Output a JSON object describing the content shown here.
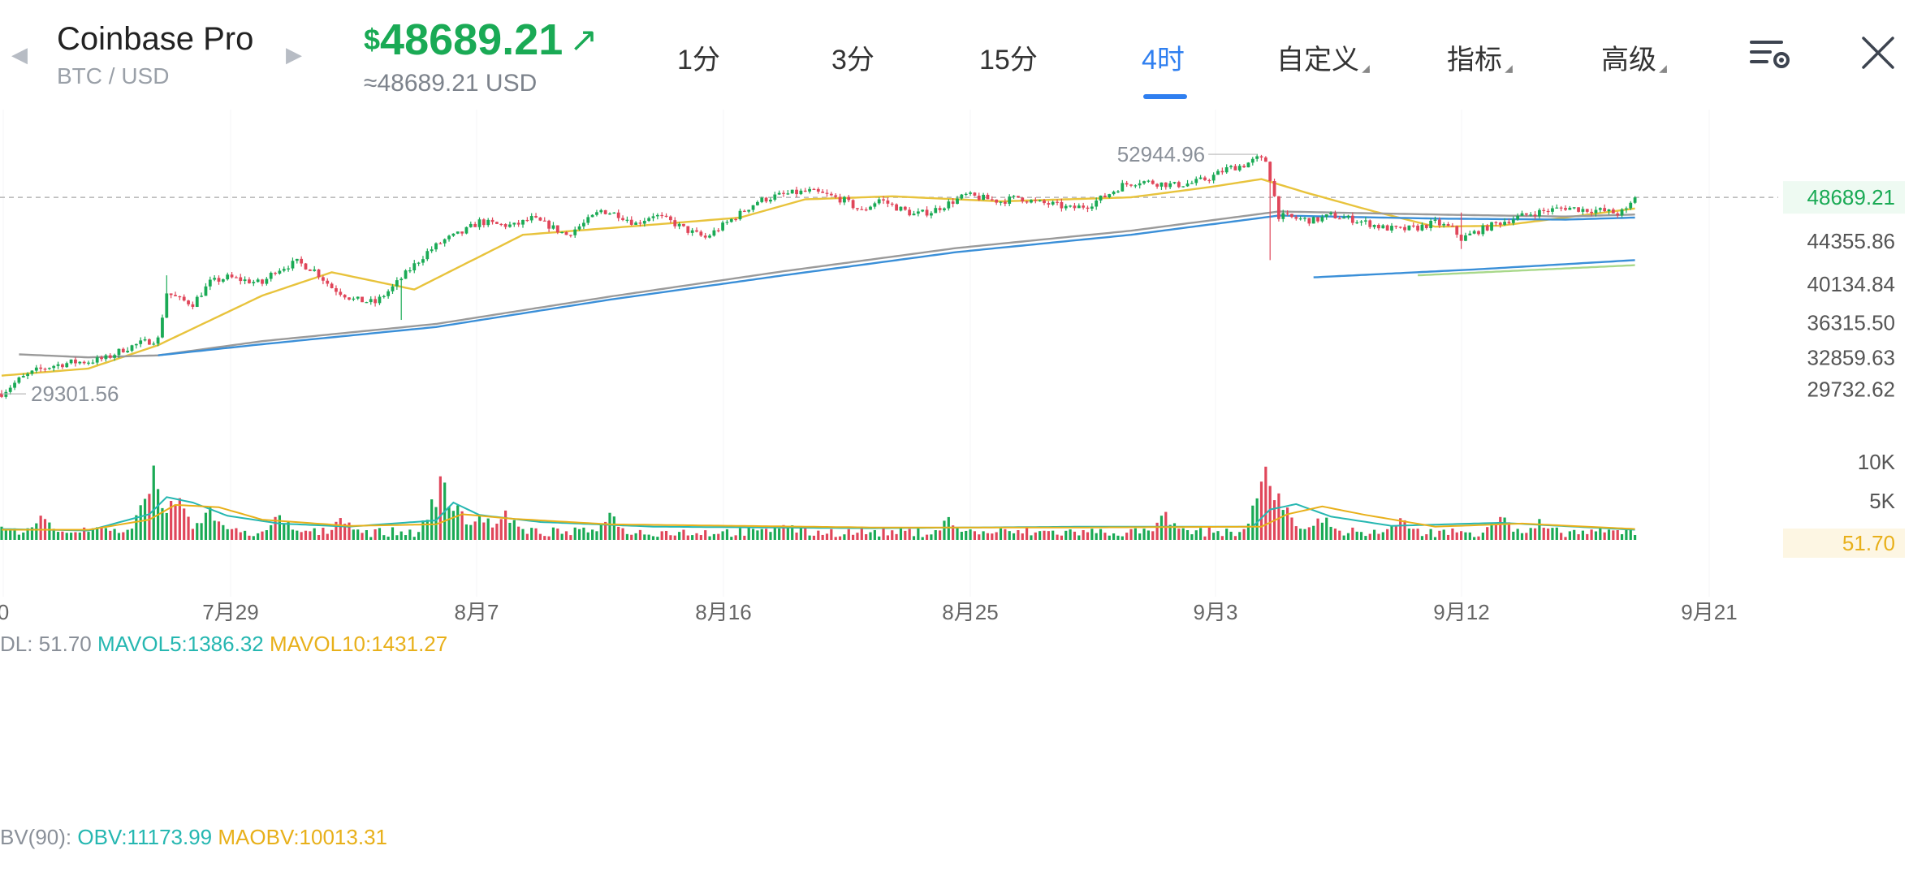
{
  "header": {
    "exchange": "Coinbase Pro",
    "pair": "BTC / USD",
    "price_currency": "$",
    "price": "48689.21",
    "price_fiat": "≈48689.21 USD",
    "trend_arrow": "↗",
    "price_color": "#1aaa55"
  },
  "tabs": [
    {
      "label": "1分",
      "active": false
    },
    {
      "label": "3分",
      "active": false
    },
    {
      "label": "15分",
      "active": false
    },
    {
      "label": "4时",
      "active": true
    },
    {
      "label": "自定义",
      "active": false,
      "dropdown": true
    },
    {
      "label": "指标",
      "active": false,
      "dropdown": true
    },
    {
      "label": "高级",
      "active": false,
      "dropdown": true
    }
  ],
  "icons": {
    "prev": "chevron-left-icon",
    "next": "chevron-right-icon",
    "settings": "list-settings-icon",
    "close": "close-icon"
  },
  "colors": {
    "accent": "#2f7ff0",
    "up": "#1aaa55",
    "down": "#e0465a",
    "ma_gold": "#e8c33c",
    "ma_grey": "#9a9a9a",
    "ma_blue": "#3a8fd8",
    "vol_ma5": "#26b7b1",
    "vol_ma10": "#e8b01a"
  },
  "indicators": {
    "vol_prefix": "DL: 51.70",
    "mavol5": "MAVOL5:1386.32",
    "mavol10": "MAVOL10:1431.27",
    "obv_prefix": "BV(90):",
    "obv": "OBV:11173.99",
    "maobv": "MAOBV:10013.31"
  },
  "chart_data": {
    "type": "candlestick",
    "symbol": "BTC / USD",
    "interval": "4时",
    "x_tick_labels": [
      "0",
      "7月29",
      "8月7",
      "8月16",
      "8月25",
      "9月3",
      "9月12",
      "9月21"
    ],
    "y_tick_labels": [
      "48689.21",
      "44355.86",
      "40134.84",
      "36315.50",
      "32859.63",
      "29732.62"
    ],
    "ylim": [
      29150,
      53350
    ],
    "annotations": {
      "high": 52944.96,
      "low": 29301.56,
      "last": 48689.21
    },
    "close_path": [
      [
        0,
        29350
      ],
      [
        4,
        30700
      ],
      [
        8,
        31600
      ],
      [
        12,
        32100
      ],
      [
        16,
        32400
      ],
      [
        20,
        32500
      ],
      [
        24,
        32800
      ],
      [
        28,
        33700
      ],
      [
        32,
        34300
      ],
      [
        36,
        34700
      ],
      [
        38,
        39300
      ],
      [
        41,
        38600
      ],
      [
        44,
        38200
      ],
      [
        48,
        40300
      ],
      [
        52,
        40800
      ],
      [
        56,
        40500
      ],
      [
        60,
        40200
      ],
      [
        63,
        41500
      ],
      [
        68,
        42300
      ],
      [
        72,
        41500
      ],
      [
        76,
        39800
      ],
      [
        81,
        38600
      ],
      [
        86,
        38300
      ],
      [
        90,
        39800
      ],
      [
        94,
        41600
      ],
      [
        98,
        43300
      ],
      [
        102,
        44500
      ],
      [
        106,
        45200
      ],
      [
        110,
        46300
      ],
      [
        114,
        46000
      ],
      [
        118,
        45900
      ],
      [
        122,
        46600
      ],
      [
        126,
        45900
      ],
      [
        130,
        45000
      ],
      [
        134,
        46100
      ],
      [
        138,
        47400
      ],
      [
        142,
        47000
      ],
      [
        146,
        46100
      ],
      [
        150,
        47000
      ],
      [
        154,
        46300
      ],
      [
        158,
        45400
      ],
      [
        162,
        44700
      ],
      [
        166,
        45900
      ],
      [
        170,
        47100
      ],
      [
        174,
        48300
      ],
      [
        178,
        48800
      ],
      [
        182,
        49100
      ],
      [
        186,
        49300
      ],
      [
        190,
        48900
      ],
      [
        194,
        48400
      ],
      [
        198,
        47300
      ],
      [
        202,
        48500
      ],
      [
        206,
        47700
      ],
      [
        210,
        47000
      ],
      [
        214,
        47300
      ],
      [
        218,
        48100
      ],
      [
        222,
        48900
      ],
      [
        226,
        48600
      ],
      [
        230,
        48300
      ],
      [
        234,
        48700
      ],
      [
        238,
        48200
      ],
      [
        242,
        48000
      ],
      [
        246,
        47600
      ],
      [
        250,
        47900
      ],
      [
        254,
        48800
      ],
      [
        258,
        49900
      ],
      [
        262,
        50300
      ],
      [
        266,
        50100
      ],
      [
        270,
        49900
      ],
      [
        274,
        50100
      ],
      [
        278,
        50600
      ],
      [
        282,
        51500
      ],
      [
        286,
        51900
      ],
      [
        289,
        52500
      ],
      [
        291,
        52300
      ],
      [
        292,
        50600
      ],
      [
        294,
        46900
      ],
      [
        298,
        46600
      ],
      [
        302,
        46400
      ],
      [
        306,
        46900
      ],
      [
        310,
        46600
      ],
      [
        314,
        46200
      ],
      [
        318,
        45700
      ],
      [
        322,
        45500
      ],
      [
        326,
        45700
      ],
      [
        330,
        46200
      ],
      [
        334,
        45600
      ],
      [
        336,
        44600
      ],
      [
        340,
        45400
      ],
      [
        344,
        46100
      ],
      [
        348,
        46600
      ],
      [
        352,
        47100
      ],
      [
        356,
        47400
      ],
      [
        360,
        47700
      ],
      [
        364,
        47500
      ],
      [
        368,
        47400
      ],
      [
        372,
        47100
      ],
      [
        374,
        47400
      ],
      [
        376,
        48689
      ]
    ],
    "spikes": [
      {
        "i": 38,
        "high": 41000,
        "low": 39000
      },
      {
        "i": 92,
        "high": 40100,
        "low": 36600
      },
      {
        "i": 292,
        "high": 51000,
        "low": 42500
      },
      {
        "i": 336,
        "high": 47200,
        "low": 43600
      }
    ],
    "series": [
      {
        "name": "MA (gold)",
        "color": "#e8c33c",
        "knots": [
          [
            0,
            31100
          ],
          [
            20,
            31800
          ],
          [
            36,
            34100
          ],
          [
            60,
            39000
          ],
          [
            76,
            41300
          ],
          [
            95,
            39600
          ],
          [
            120,
            45000
          ],
          [
            150,
            46000
          ],
          [
            170,
            46700
          ],
          [
            185,
            48500
          ],
          [
            205,
            48800
          ],
          [
            230,
            48300
          ],
          [
            260,
            48700
          ],
          [
            278,
            49700
          ],
          [
            290,
            50500
          ],
          [
            300,
            49200
          ],
          [
            316,
            47300
          ],
          [
            330,
            45800
          ],
          [
            345,
            45900
          ],
          [
            360,
            46700
          ],
          [
            376,
            47600
          ]
        ]
      },
      {
        "name": "MA (grey)",
        "color": "#9a9a9a",
        "knots": [
          [
            4,
            33200
          ],
          [
            20,
            32900
          ],
          [
            36,
            33100
          ],
          [
            60,
            34500
          ],
          [
            100,
            36200
          ],
          [
            140,
            38900
          ],
          [
            180,
            41400
          ],
          [
            220,
            43700
          ],
          [
            260,
            45400
          ],
          [
            294,
            47300
          ],
          [
            330,
            47000
          ],
          [
            360,
            46800
          ],
          [
            376,
            47000
          ]
        ]
      },
      {
        "name": "MA (blue)",
        "color": "#3a8fd8",
        "knots": [
          [
            36,
            33100
          ],
          [
            60,
            34200
          ],
          [
            100,
            35900
          ],
          [
            140,
            38600
          ],
          [
            180,
            41000
          ],
          [
            220,
            43300
          ],
          [
            260,
            45000
          ],
          [
            294,
            46900
          ],
          [
            330,
            46600
          ],
          [
            360,
            46500
          ],
          [
            376,
            46700
          ]
        ]
      },
      {
        "name": "MA (blue lower)",
        "color": "#3a8fd8",
        "knots": [
          [
            302,
            40800
          ],
          [
            340,
            41600
          ],
          [
            376,
            42500
          ]
        ]
      },
      {
        "name": "MA (green lower)",
        "color": "#a8d88a",
        "knots": [
          [
            326,
            41000
          ],
          [
            376,
            42000
          ]
        ]
      }
    ],
    "volume": {
      "ylim": [
        0,
        12000
      ],
      "y_tick_labels": [
        "10K",
        "5K",
        "51.70"
      ],
      "baseline": 900,
      "peaks": [
        [
          0,
          2200
        ],
        [
          9,
          3500
        ],
        [
          22,
          2400
        ],
        [
          35,
          9600
        ],
        [
          36,
          6200
        ],
        [
          40,
          7000
        ],
        [
          48,
          5300
        ],
        [
          64,
          3900
        ],
        [
          79,
          3600
        ],
        [
          101,
          9200
        ],
        [
          104,
          5800
        ],
        [
          110,
          4200
        ],
        [
          116,
          3900
        ],
        [
          140,
          4000
        ],
        [
          180,
          3000
        ],
        [
          218,
          3200
        ],
        [
          268,
          3800
        ],
        [
          291,
          10100
        ],
        [
          294,
          6300
        ],
        [
          304,
          3600
        ],
        [
          322,
          3100
        ],
        [
          345,
          3700
        ],
        [
          354,
          2800
        ]
      ],
      "mavol5_knots": [
        [
          0,
          1400
        ],
        [
          20,
          1200
        ],
        [
          34,
          3300
        ],
        [
          38,
          5500
        ],
        [
          44,
          4800
        ],
        [
          52,
          3100
        ],
        [
          64,
          2100
        ],
        [
          80,
          1700
        ],
        [
          100,
          2500
        ],
        [
          104,
          4800
        ],
        [
          110,
          3200
        ],
        [
          124,
          2300
        ],
        [
          150,
          1700
        ],
        [
          200,
          1500
        ],
        [
          250,
          1700
        ],
        [
          288,
          1700
        ],
        [
          292,
          3900
        ],
        [
          298,
          4600
        ],
        [
          306,
          3000
        ],
        [
          320,
          1800
        ],
        [
          345,
          2200
        ],
        [
          376,
          1300
        ]
      ],
      "mavol10_knots": [
        [
          0,
          1300
        ],
        [
          20,
          1300
        ],
        [
          34,
          2600
        ],
        [
          40,
          4500
        ],
        [
          50,
          4200
        ],
        [
          60,
          2600
        ],
        [
          80,
          1800
        ],
        [
          100,
          2000
        ],
        [
          106,
          3300
        ],
        [
          118,
          2700
        ],
        [
          140,
          2000
        ],
        [
          200,
          1600
        ],
        [
          250,
          1600
        ],
        [
          290,
          1700
        ],
        [
          296,
          3300
        ],
        [
          304,
          4300
        ],
        [
          314,
          3200
        ],
        [
          330,
          1700
        ],
        [
          350,
          2100
        ],
        [
          376,
          1400
        ]
      ]
    }
  }
}
